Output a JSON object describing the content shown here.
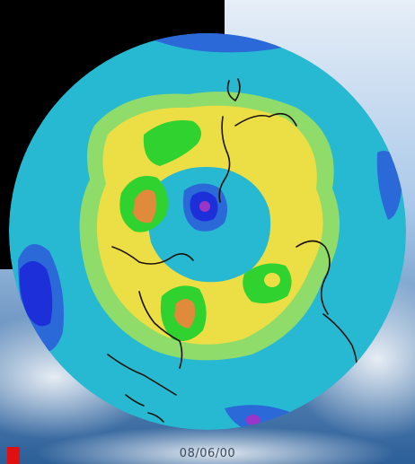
{
  "map": {
    "date_label": "08/06/00",
    "colors": {
      "background_black": "#000000",
      "sky_light": "#dfe9f4",
      "sky_mid": "#9ec0e3",
      "sky_dark": "#2c5f98",
      "cyan_outer": "#27b8d2",
      "blue_low": "#2b68d8",
      "deep_blue": "#1d2fd8",
      "light_green": "#8fdc6a",
      "yellow_ring": "#ecdf45",
      "bright_green": "#2fd22f",
      "orange_peak": "#e08a3c",
      "purple_center": "#9b35c8",
      "coastline": "#1a1209",
      "red_marker": "#e01010"
    }
  }
}
